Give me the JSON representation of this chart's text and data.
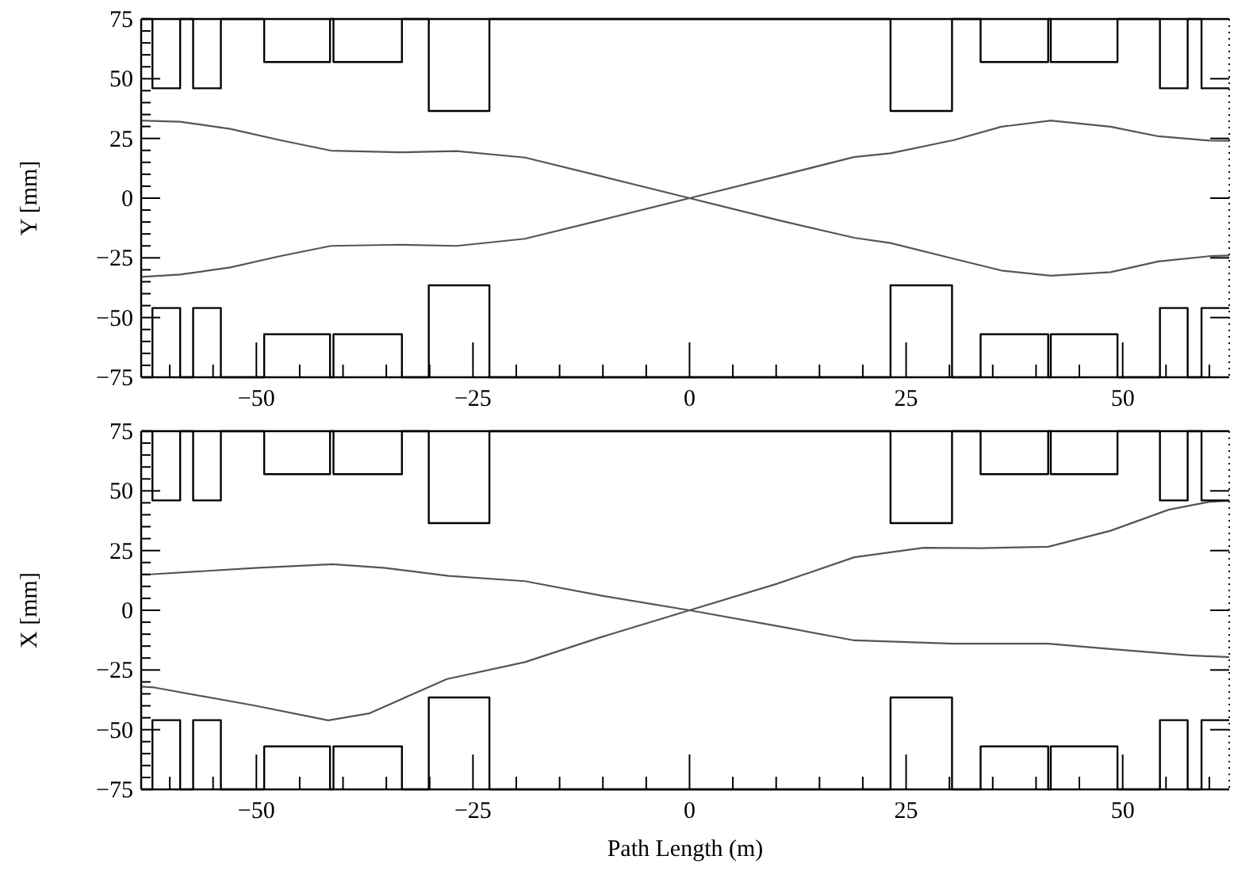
{
  "chart_data": [
    {
      "type": "line",
      "ylabel": "Y [mm]",
      "xlim": [
        -63.3,
        62.3
      ],
      "ylim": [
        -75,
        75
      ],
      "xticks": [
        {
          "value": -60,
          "label": null
        },
        {
          "value": -55,
          "label": null
        },
        -50,
        {
          "value": -45,
          "label": null
        },
        {
          "value": -40,
          "label": null
        },
        {
          "value": -35,
          "label": null
        },
        {
          "value": -30,
          "label": null
        },
        -25,
        {
          "value": -20,
          "label": null
        },
        {
          "value": -15,
          "label": null
        },
        {
          "value": -10,
          "label": null
        },
        {
          "value": -5,
          "label": null
        },
        0,
        {
          "value": 5,
          "label": null
        },
        {
          "value": 10,
          "label": null
        },
        {
          "value": 15,
          "label": null
        },
        {
          "value": 20,
          "label": null
        },
        25,
        {
          "value": 30,
          "label": null
        },
        {
          "value": 35,
          "label": null
        },
        {
          "value": 40,
          "label": null
        },
        {
          "value": 45,
          "label": null
        },
        50,
        {
          "value": 55,
          "label": null
        },
        {
          "value": 60,
          "label": null
        }
      ],
      "yticks": [
        -75,
        {
          "value": -70,
          "label": null
        },
        {
          "value": -65,
          "label": null
        },
        {
          "value": -60,
          "label": null
        },
        {
          "value": -55,
          "label": null
        },
        -50,
        {
          "value": -45,
          "label": null
        },
        {
          "value": -40,
          "label": null
        },
        {
          "value": -35,
          "label": null
        },
        {
          "value": -30,
          "label": null
        },
        -25,
        {
          "value": -20,
          "label": null
        },
        {
          "value": -15,
          "label": null
        },
        {
          "value": -10,
          "label": null
        },
        {
          "value": -5,
          "label": null
        },
        0,
        {
          "value": 5,
          "label": null
        },
        {
          "value": 10,
          "label": null
        },
        {
          "value": 15,
          "label": null
        },
        {
          "value": 20,
          "label": null
        },
        25,
        {
          "value": 30,
          "label": null
        },
        {
          "value": 35,
          "label": null
        },
        {
          "value": 40,
          "label": null
        },
        {
          "value": 45,
          "label": null
        },
        50,
        {
          "value": 55,
          "label": null
        },
        {
          "value": 60,
          "label": null
        },
        {
          "value": 65,
          "label": null
        },
        {
          "value": 70,
          "label": null
        },
        75
      ],
      "series": [
        {
          "color": "#555555",
          "x": [
            -63.3,
            -58.8,
            -53,
            -47.3,
            -41.4,
            -33.5,
            -26.9,
            -19,
            -10,
            0,
            10,
            19,
            23.2,
            30.5,
            36,
            41.7,
            48.6,
            54.1,
            60,
            62.3
          ],
          "values": [
            32.5,
            32,
            29,
            24.3,
            19.9,
            19.2,
            19.7,
            17,
            9,
            0,
            -9,
            -16.6,
            -18.8,
            -25.4,
            -30.3,
            -32.5,
            -31,
            -26.5,
            -24.3,
            -24
          ]
        },
        {
          "color": "#555555",
          "x": [
            -63.3,
            -58.8,
            -53,
            -47.3,
            -41.4,
            -33.5,
            -26.9,
            -19,
            -10,
            0,
            10,
            19,
            23.2,
            30.5,
            36,
            41.7,
            48.6,
            54.1,
            60,
            62.3
          ],
          "values": [
            -33,
            -32,
            -29,
            -24.3,
            -20,
            -19.5,
            -20,
            -17,
            -9,
            0,
            9,
            17.2,
            18.8,
            24.3,
            29.9,
            32.5,
            29.9,
            25.9,
            24.1,
            24
          ]
        },
        {
          "type": "step",
          "color": "#000000",
          "x": [
            -63.3,
            -62,
            -58.8,
            -57.3,
            -54.1,
            -49.1,
            -41.5,
            -41.1,
            -33.2,
            -30.1,
            -23.1,
            23.2,
            30.3,
            33.6,
            41.4,
            41.7,
            49.4,
            54.3,
            57.5,
            59.1,
            62.3
          ],
          "values": [
            75,
            46,
            75,
            46,
            75,
            57,
            75,
            57,
            75,
            36.5,
            75,
            36.5,
            75,
            57,
            75,
            57,
            75,
            46,
            75,
            46,
            46
          ]
        },
        {
          "type": "step",
          "color": "#000000",
          "x": [
            -63.3,
            -62,
            -58.8,
            -57.3,
            -54.1,
            -49.1,
            -41.5,
            -41.1,
            -33.2,
            -30.1,
            -23.1,
            23.2,
            30.3,
            33.6,
            41.4,
            41.7,
            49.4,
            54.3,
            57.5,
            59.1,
            62.3
          ],
          "values": [
            -75,
            -46,
            -75,
            -46,
            -75,
            -57,
            -75,
            -57,
            -75,
            -36.5,
            -75,
            -36.5,
            -75,
            -57,
            -75,
            -57,
            -75,
            -46,
            -75,
            -46,
            -46
          ]
        }
      ]
    },
    {
      "type": "line",
      "ylabel": "X [mm]",
      "xlabel": "Path Length (m)",
      "xlim": [
        -63.3,
        62.3
      ],
      "ylim": [
        -75,
        75
      ],
      "xticks": [
        {
          "value": -60,
          "label": null
        },
        {
          "value": -55,
          "label": null
        },
        -50,
        {
          "value": -45,
          "label": null
        },
        {
          "value": -40,
          "label": null
        },
        {
          "value": -35,
          "label": null
        },
        {
          "value": -30,
          "label": null
        },
        -25,
        {
          "value": -20,
          "label": null
        },
        {
          "value": -15,
          "label": null
        },
        {
          "value": -10,
          "label": null
        },
        {
          "value": -5,
          "label": null
        },
        0,
        {
          "value": 5,
          "label": null
        },
        {
          "value": 10,
          "label": null
        },
        {
          "value": 15,
          "label": null
        },
        {
          "value": 20,
          "label": null
        },
        25,
        {
          "value": 30,
          "label": null
        },
        {
          "value": 35,
          "label": null
        },
        {
          "value": 40,
          "label": null
        },
        {
          "value": 45,
          "label": null
        },
        50,
        {
          "value": 55,
          "label": null
        },
        {
          "value": 60,
          "label": null
        }
      ],
      "yticks": [
        -75,
        {
          "value": -70,
          "label": null
        },
        {
          "value": -65,
          "label": null
        },
        {
          "value": -60,
          "label": null
        },
        {
          "value": -55,
          "label": null
        },
        -50,
        {
          "value": -45,
          "label": null
        },
        {
          "value": -40,
          "label": null
        },
        {
          "value": -35,
          "label": null
        },
        {
          "value": -30,
          "label": null
        },
        -25,
        {
          "value": -20,
          "label": null
        },
        {
          "value": -15,
          "label": null
        },
        {
          "value": -10,
          "label": null
        },
        {
          "value": -5,
          "label": null
        },
        0,
        {
          "value": 5,
          "label": null
        },
        {
          "value": 10,
          "label": null
        },
        {
          "value": 15,
          "label": null
        },
        {
          "value": 20,
          "label": null
        },
        25,
        {
          "value": 30,
          "label": null
        },
        {
          "value": 35,
          "label": null
        },
        {
          "value": 40,
          "label": null
        },
        {
          "value": 45,
          "label": null
        },
        50,
        {
          "value": 55,
          "label": null
        },
        {
          "value": 60,
          "label": null
        },
        {
          "value": 65,
          "label": null
        },
        {
          "value": 70,
          "label": null
        },
        75
      ],
      "series": [
        {
          "color": "#555555",
          "x": [
            -63.3,
            -62,
            -50.2,
            -41.2,
            -35.1,
            -27.8,
            -19,
            -10,
            0,
            10,
            19,
            30.5,
            41.4,
            48.6,
            57.7,
            62.3
          ],
          "values": [
            15,
            15.1,
            17.7,
            19.3,
            17.7,
            14.4,
            12.2,
            6,
            0,
            -6.5,
            -12.6,
            -14,
            -14,
            -16.2,
            -18.9,
            -19.6
          ]
        },
        {
          "color": "#555555",
          "x": [
            -63.3,
            -62,
            -50.2,
            -41.7,
            -37,
            -28,
            -19,
            -10,
            0,
            10,
            19,
            27,
            33.6,
            41.4,
            48.6,
            55.3,
            60,
            62.3
          ],
          "values": [
            -32,
            -32.2,
            -39.9,
            -46.1,
            -43.2,
            -28.8,
            -21.7,
            -11,
            0,
            11,
            22.2,
            26.2,
            26,
            26.6,
            33.3,
            42.1,
            45.4,
            45.8
          ]
        },
        {
          "type": "step",
          "color": "#000000",
          "x": [
            -63.3,
            -62,
            -58.8,
            -57.3,
            -54.1,
            -49.1,
            -41.5,
            -41.1,
            -33.2,
            -30.1,
            -23.1,
            23.2,
            30.3,
            33.6,
            41.4,
            41.7,
            49.4,
            54.3,
            57.5,
            59.1,
            62.3
          ],
          "values": [
            75,
            46,
            75,
            46,
            75,
            57,
            75,
            57,
            75,
            36.5,
            75,
            36.5,
            75,
            57,
            75,
            57,
            75,
            46,
            75,
            46,
            46
          ]
        },
        {
          "type": "step",
          "color": "#000000",
          "x": [
            -63.3,
            -62,
            -58.8,
            -57.3,
            -54.1,
            -49.1,
            -41.5,
            -41.1,
            -33.2,
            -30.1,
            -23.1,
            23.2,
            30.3,
            33.6,
            41.4,
            41.7,
            49.4,
            54.3,
            57.5,
            59.1,
            62.3
          ],
          "values": [
            -75,
            -46,
            -75,
            -46,
            -75,
            -57,
            -75,
            -57,
            -75,
            -36.5,
            -75,
            -36.5,
            -75,
            -57,
            -75,
            -57,
            -75,
            -46,
            -75,
            -46,
            -46
          ]
        }
      ]
    }
  ]
}
